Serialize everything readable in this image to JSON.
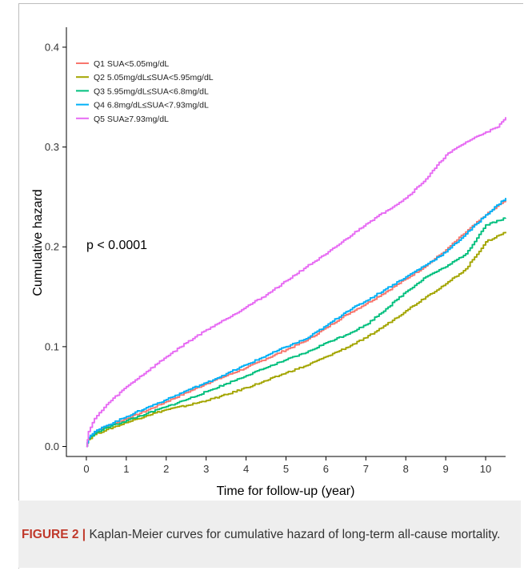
{
  "caption": {
    "label": "FIGURE 2",
    "separator": " | ",
    "text": "Kaplan-Meier curves for cumulative hazard of long-term all-cause mortality."
  },
  "chart_data": {
    "type": "line",
    "title": "",
    "xlabel": "Time for follow-up (year)",
    "ylabel": "Cumulative hazard",
    "xlim": [
      -0.5,
      10.5
    ],
    "ylim": [
      -0.01,
      0.42
    ],
    "xticks": [
      0,
      1,
      2,
      3,
      4,
      5,
      6,
      7,
      8,
      9,
      10
    ],
    "yticks": [
      0.0,
      0.1,
      0.2,
      0.3,
      0.4
    ],
    "ytick_labels": [
      "0.0",
      "0.1",
      "0.2",
      "0.3",
      "0.4"
    ],
    "grid": false,
    "legend_position": "top-left",
    "annotation": "p < 0.0001",
    "series": [
      {
        "name": "Q1 SUA<5.05mg/dL",
        "color": "#f8766d",
        "x": [
          0,
          0.05,
          0.2,
          0.5,
          1,
          1.5,
          2,
          2.5,
          3,
          3.5,
          4,
          4.5,
          5,
          5.5,
          6,
          6.5,
          7,
          7.5,
          8,
          8.5,
          9,
          9.5,
          10,
          10.5
        ],
        "y": [
          0.0,
          0.008,
          0.014,
          0.02,
          0.028,
          0.036,
          0.045,
          0.054,
          0.063,
          0.071,
          0.079,
          0.088,
          0.097,
          0.106,
          0.119,
          0.132,
          0.143,
          0.155,
          0.168,
          0.181,
          0.197,
          0.215,
          0.232,
          0.247
        ]
      },
      {
        "name": "Q2 5.05mg/dL≤SUA<5.95mg/dL",
        "color": "#a3a500",
        "x": [
          0,
          0.05,
          0.2,
          0.5,
          1,
          1.5,
          2,
          2.5,
          3,
          3.5,
          4,
          4.5,
          5,
          5.5,
          6,
          6.5,
          7,
          7.5,
          8,
          8.5,
          9,
          9.5,
          10,
          10.5
        ],
        "y": [
          0.0,
          0.007,
          0.012,
          0.017,
          0.024,
          0.031,
          0.037,
          0.041,
          0.046,
          0.052,
          0.059,
          0.066,
          0.074,
          0.081,
          0.09,
          0.099,
          0.109,
          0.122,
          0.136,
          0.15,
          0.163,
          0.178,
          0.205,
          0.215
        ]
      },
      {
        "name": "Q3 5.95mg/dL≤SUA<6.8mg/dL",
        "color": "#00bf7d",
        "x": [
          0,
          0.05,
          0.2,
          0.5,
          1,
          1.5,
          2,
          2.5,
          3,
          3.5,
          4,
          4.5,
          5,
          5.5,
          6,
          6.5,
          7,
          7.5,
          8,
          8.5,
          9,
          9.5,
          10,
          10.5
        ],
        "y": [
          0.0,
          0.008,
          0.013,
          0.019,
          0.026,
          0.033,
          0.04,
          0.047,
          0.055,
          0.063,
          0.071,
          0.079,
          0.087,
          0.094,
          0.104,
          0.112,
          0.122,
          0.138,
          0.155,
          0.17,
          0.18,
          0.193,
          0.222,
          0.229
        ]
      },
      {
        "name": "Q4 6.8mg/dL≤SUA<7.93mg/dL",
        "color": "#00b0f6",
        "x": [
          0,
          0.05,
          0.2,
          0.5,
          1,
          1.5,
          2,
          2.5,
          3,
          3.5,
          4,
          4.5,
          5,
          5.5,
          6,
          6.5,
          7,
          7.5,
          8,
          8.5,
          9,
          9.5,
          10,
          10.5
        ],
        "y": [
          0.0,
          0.009,
          0.015,
          0.021,
          0.03,
          0.039,
          0.047,
          0.056,
          0.064,
          0.073,
          0.082,
          0.091,
          0.1,
          0.108,
          0.121,
          0.135,
          0.146,
          0.158,
          0.17,
          0.182,
          0.195,
          0.213,
          0.232,
          0.249
        ]
      },
      {
        "name": "Q5 SUA≥7.93mg/dL",
        "color": "#e76bf3",
        "x": [
          0,
          0.05,
          0.2,
          0.5,
          1,
          1.5,
          2,
          2.5,
          3,
          3.5,
          4,
          4.5,
          5,
          5.5,
          6,
          6.5,
          7,
          7.5,
          8,
          8.5,
          9,
          9.5,
          10,
          10.3,
          10.5
        ],
        "y": [
          0.0,
          0.015,
          0.028,
          0.042,
          0.06,
          0.075,
          0.09,
          0.104,
          0.117,
          0.128,
          0.14,
          0.152,
          0.166,
          0.18,
          0.193,
          0.208,
          0.223,
          0.236,
          0.249,
          0.268,
          0.292,
          0.305,
          0.315,
          0.32,
          0.33
        ]
      }
    ]
  }
}
